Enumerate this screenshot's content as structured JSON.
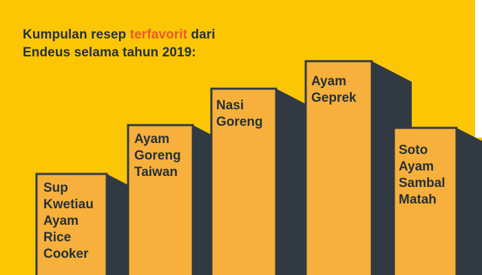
{
  "headline": {
    "before": "Kumpulan resep ",
    "highlight": "terfavorit",
    "after": " dari",
    "line2": "Endeus selama tahun 2019:"
  },
  "colors": {
    "background": "#FCC605",
    "bar_face": "#F7B03B",
    "bar_shadow": "#313A42",
    "text": "#25303A",
    "accent": "#EA5A28"
  },
  "recipes": [
    {
      "name": "Sup\nKwetiau\nAyam\nRice\nCooker"
    },
    {
      "name": "Ayam\nGoreng\nTaiwan"
    },
    {
      "name": "Nasi\nGoreng"
    },
    {
      "name": "Ayam\nGeprek"
    },
    {
      "name": "Soto\nAyam\nSambal\nMatah"
    }
  ]
}
